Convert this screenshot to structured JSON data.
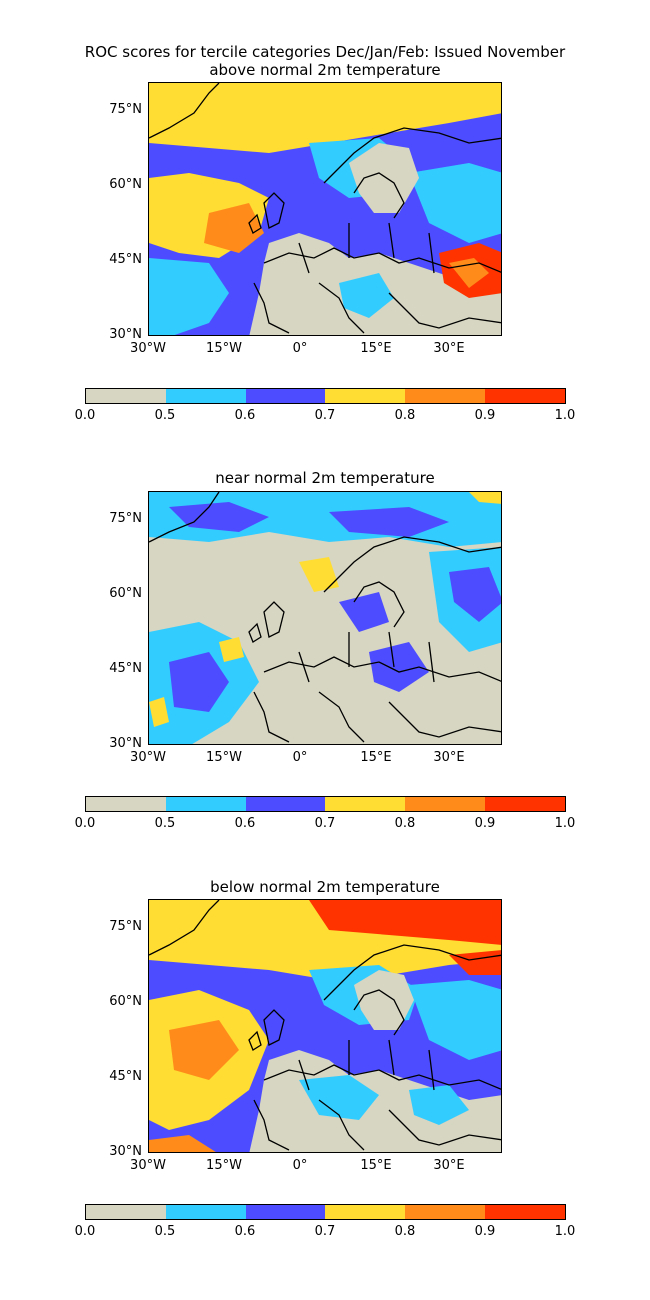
{
  "figure": {
    "main_title": "ROC scores for tercile categories Dec/Jan/Feb: Issued November"
  },
  "panels": [
    {
      "title": "above normal 2m temperature"
    },
    {
      "title": "near normal 2m temperature"
    },
    {
      "title": "below normal 2m temperature"
    }
  ],
  "axes": {
    "lat_labels": [
      "75°N",
      "60°N",
      "45°N",
      "30°N"
    ],
    "lon_labels": [
      "30°W",
      "15°W",
      "0°",
      "15°E",
      "30°E"
    ]
  },
  "colorbar": {
    "colors": [
      "#d6d6c2",
      "#33ccff",
      "#4d4dff",
      "#ffdd33",
      "#ff8c1a",
      "#ff3300"
    ],
    "labels": [
      "0.0",
      "0.5",
      "0.6",
      "0.7",
      "0.8",
      "0.9",
      "1.0"
    ]
  },
  "colors": {
    "land_no_skill": "#d6d6c2",
    "coastline": "#000000"
  }
}
